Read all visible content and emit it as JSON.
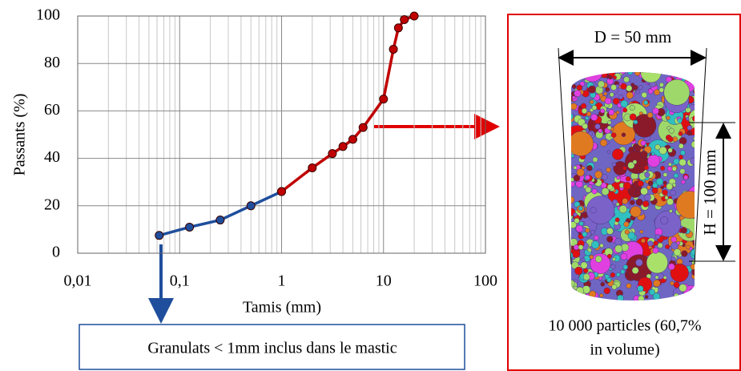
{
  "chart_data": {
    "type": "line",
    "xlabel": "Tamis (mm)",
    "ylabel": "Passants (%)",
    "xscale": "log",
    "grid": true,
    "minor_grid": true,
    "xlim": [
      0.01,
      100
    ],
    "xticks": [
      {
        "value": 0.01,
        "label": "0,01"
      },
      {
        "value": 0.1,
        "label": "0,1"
      },
      1,
      10,
      100
    ],
    "ylim": [
      0,
      100
    ],
    "yticks": [
      0,
      20,
      40,
      60,
      80,
      100
    ],
    "series": [
      {
        "color": "#1f4e9c",
        "x": [
          0.063,
          0.125,
          0.25,
          0.5,
          1
        ],
        "values": [
          7.5,
          11,
          14,
          20,
          26
        ]
      },
      {
        "color": "#c00000",
        "x": [
          1,
          2,
          3.15,
          4,
          5,
          6.3,
          10,
          12.5,
          14,
          16,
          20
        ],
        "values": [
          26,
          36,
          42,
          45,
          48,
          53,
          65,
          86,
          95,
          98.5,
          100
        ]
      }
    ]
  },
  "annotations": {
    "box_note": "Granulats < 1mm inclus dans le mastic",
    "diameter_label": "D = 50 mm",
    "height_label": "H = 100 mm",
    "caption": [
      "10 000 particles (60,7%",
      "in volume)"
    ]
  }
}
